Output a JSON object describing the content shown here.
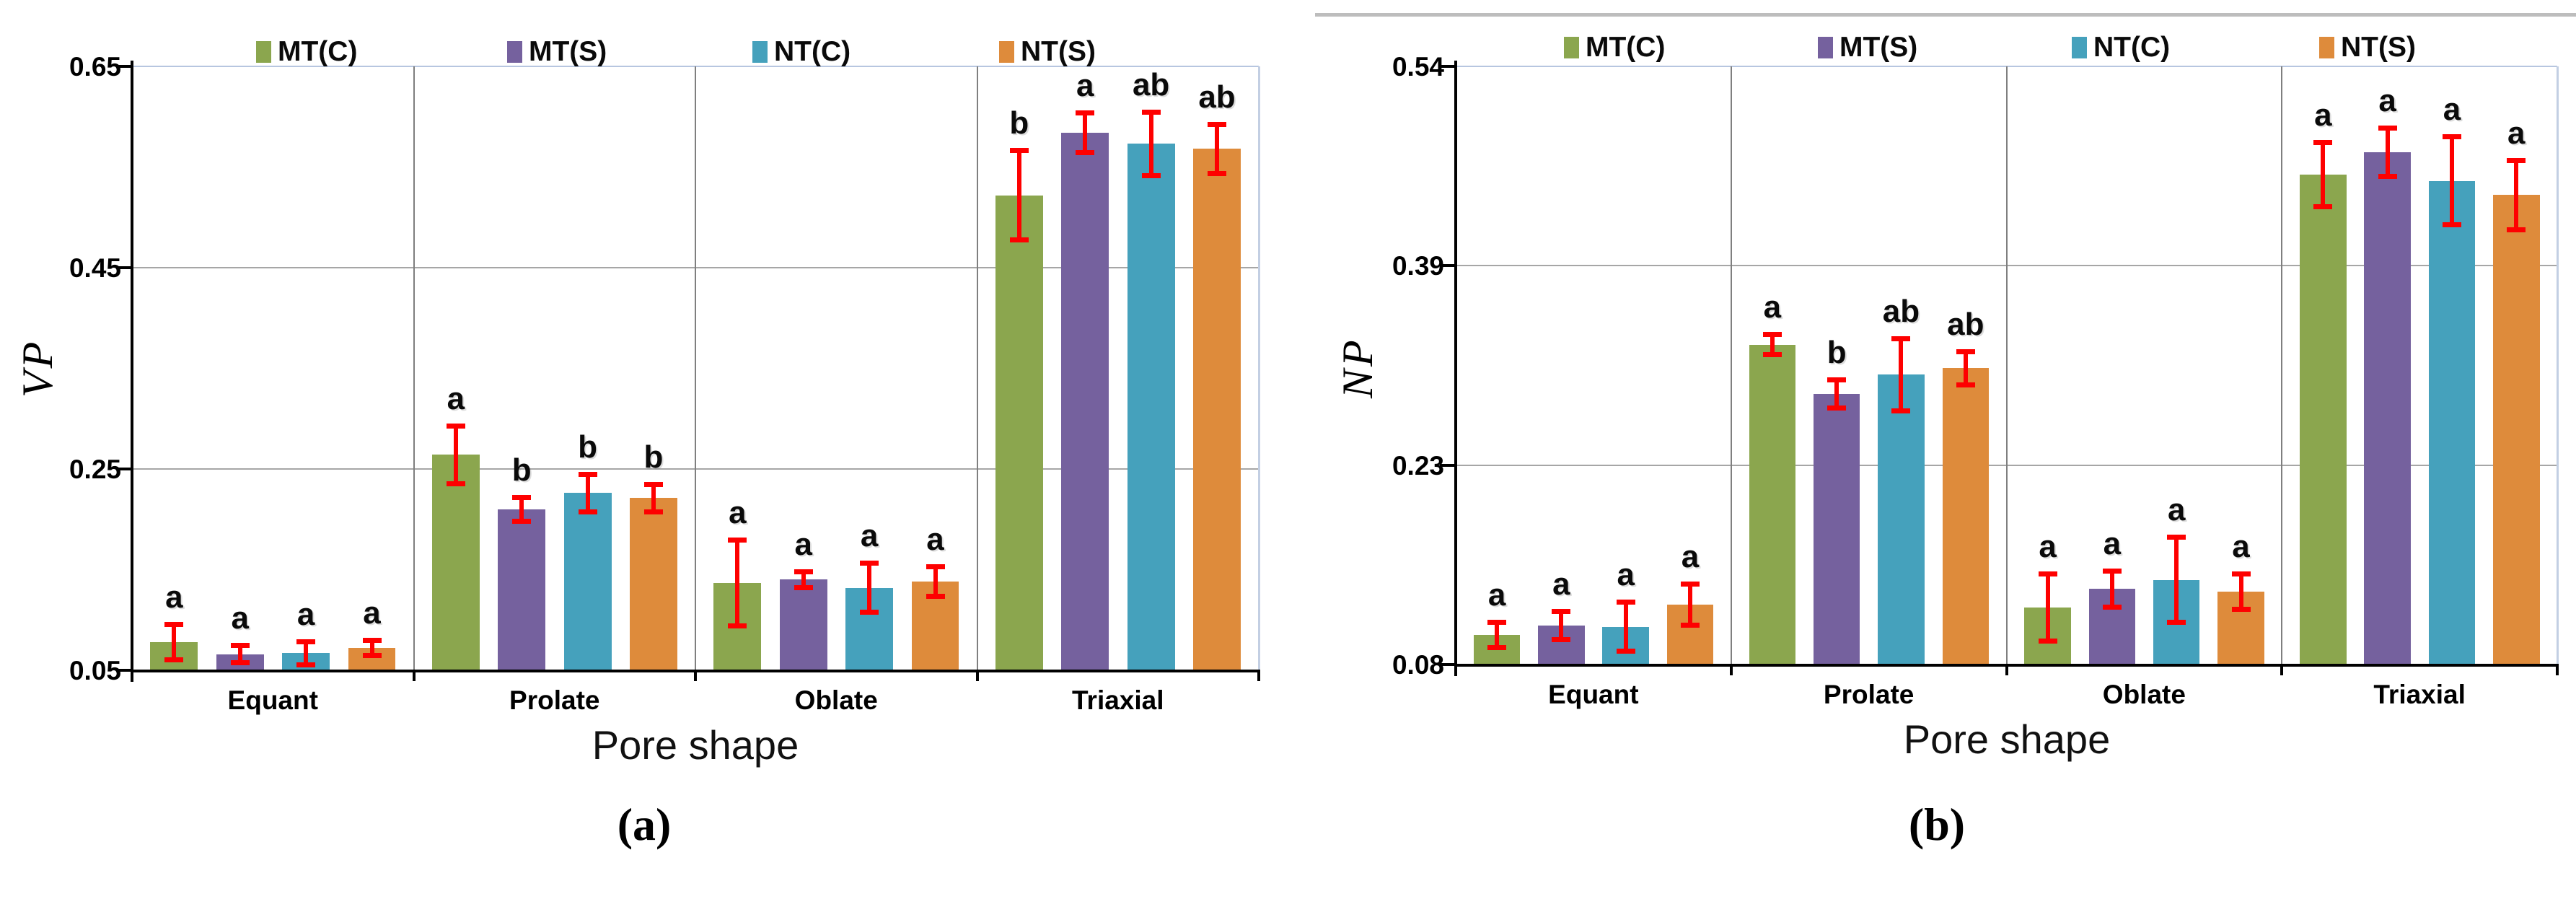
{
  "palette": {
    "grid_grey": "#a6a6a6",
    "separator_grey": "#7f7f7f",
    "top_gridline_blue": "#b7c6e0",
    "right_border_blue": "#c3cfe3",
    "error_bar_red": "#fe0000",
    "series_green": "#8ba64e",
    "series_purple": "#75619e",
    "series_teal": "#45a1bc",
    "series_orange": "#de8b3b"
  },
  "chart_data": [
    {
      "type": "bar",
      "panel_label": "(a)",
      "ylabel": "VP",
      "xlabel": "Pore shape",
      "legend_position": "top",
      "grid": "horizontal",
      "categories": [
        "Equant",
        "Prolate",
        "Oblate",
        "Triaxial"
      ],
      "ymin": 0.05,
      "ymax": 0.65,
      "ytick_labels": [
        "0.05",
        "0.25",
        "0.45",
        "0.65"
      ],
      "series": [
        {
          "name": "MT(C)",
          "color": "#8ba64e",
          "values": [
            0.078,
            0.264,
            0.137,
            0.522
          ],
          "errors": [
            0.018,
            0.029,
            0.043,
            0.045
          ],
          "sig_letters": [
            "a",
            "a",
            "a",
            "b"
          ]
        },
        {
          "name": "MT(S)",
          "color": "#75619e",
          "values": [
            0.066,
            0.21,
            0.14,
            0.584
          ],
          "errors": [
            0.009,
            0.012,
            0.008,
            0.02
          ],
          "sig_letters": [
            "a",
            "b",
            "a",
            "a"
          ]
        },
        {
          "name": "NT(C)",
          "color": "#45a1bc",
          "values": [
            0.067,
            0.226,
            0.132,
            0.573
          ],
          "errors": [
            0.012,
            0.019,
            0.025,
            0.032
          ],
          "sig_letters": [
            "a",
            "b",
            "a",
            "ab"
          ]
        },
        {
          "name": "NT(S)",
          "color": "#de8b3b",
          "values": [
            0.072,
            0.221,
            0.138,
            0.568
          ],
          "errors": [
            0.008,
            0.014,
            0.015,
            0.025
          ],
          "sig_letters": [
            "a",
            "b",
            "a",
            "ab"
          ]
        }
      ]
    },
    {
      "type": "bar",
      "panel_label": "(b)",
      "ylabel": "NP",
      "xlabel": "Pore shape",
      "legend_position": "top",
      "grid": "horizontal",
      "categories": [
        "Equant",
        "Prolate",
        "Oblate",
        "Triaxial"
      ],
      "ymin": 0.08,
      "ymax": 0.54,
      "ytick_labels": [
        "0.08",
        "0.23",
        "0.39",
        "0.54"
      ],
      "series": [
        {
          "name": "MT(C)",
          "color": "#8ba64e",
          "values": [
            0.103,
            0.326,
            0.124,
            0.457
          ],
          "errors": [
            0.01,
            0.008,
            0.026,
            0.025
          ],
          "sig_letters": [
            "a",
            "a",
            "a",
            "a"
          ]
        },
        {
          "name": "MT(S)",
          "color": "#75619e",
          "values": [
            0.11,
            0.288,
            0.138,
            0.474
          ],
          "errors": [
            0.011,
            0.011,
            0.014,
            0.019
          ],
          "sig_letters": [
            "a",
            "b",
            "a",
            "a"
          ]
        },
        {
          "name": "NT(C)",
          "color": "#45a1bc",
          "values": [
            0.109,
            0.303,
            0.145,
            0.452
          ],
          "errors": [
            0.019,
            0.028,
            0.033,
            0.034
          ],
          "sig_letters": [
            "a",
            "ab",
            "a",
            "a"
          ]
        },
        {
          "name": "NT(S)",
          "color": "#de8b3b",
          "values": [
            0.126,
            0.308,
            0.136,
            0.441
          ],
          "errors": [
            0.016,
            0.013,
            0.014,
            0.027
          ],
          "sig_letters": [
            "a",
            "ab",
            "a",
            "a"
          ]
        }
      ]
    }
  ]
}
